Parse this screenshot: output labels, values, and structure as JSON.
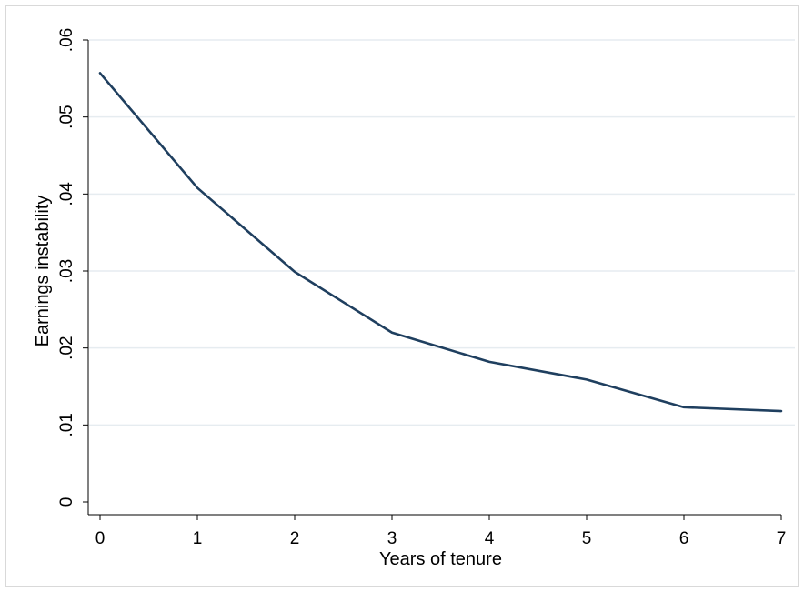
{
  "chart_data": {
    "type": "line",
    "title": "",
    "xlabel": "Years of tenure",
    "ylabel": "Earnings instability",
    "x": [
      0,
      1,
      2,
      3,
      4,
      5,
      6,
      7
    ],
    "series": [
      {
        "values": [
          0.0557,
          0.0408,
          0.0299,
          0.022,
          0.0182,
          0.0159,
          0.0123,
          0.0118
        ]
      }
    ],
    "xlim": [
      0,
      7
    ],
    "ylim": [
      0,
      0.06
    ],
    "xticks": [
      0,
      1,
      2,
      3,
      4,
      5,
      6,
      7
    ],
    "xtick_labels": [
      "0",
      "1",
      "2",
      "3",
      "4",
      "5",
      "6",
      "7"
    ],
    "yticks": [
      0,
      0.01,
      0.02,
      0.03,
      0.04,
      0.05,
      0.06
    ],
    "ytick_labels": [
      "0",
      ".01",
      ".02",
      ".03",
      ".04",
      ".05",
      ".06"
    ],
    "grid": true,
    "legend": "none",
    "colors": {
      "line": "#1f3f5f",
      "grid": "#e6ecf0",
      "axis": "#000000",
      "frame": "#d9d9d9"
    }
  }
}
